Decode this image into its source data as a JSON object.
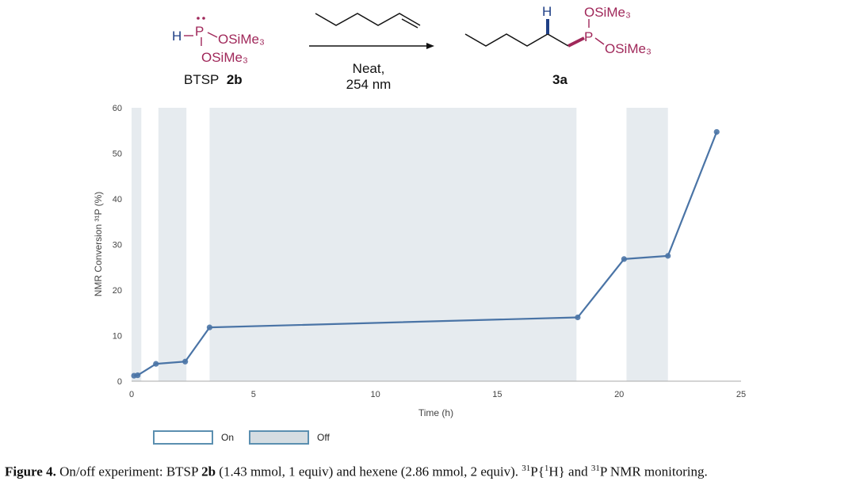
{
  "scheme": {
    "reagent": {
      "h": "H",
      "p": "P",
      "osime3_top": "OSiMe₃",
      "osime3_bottom": "OSiMe₃",
      "name_prefix": "BTSP",
      "name_bold": "2b"
    },
    "conditions": {
      "line1": "Neat,",
      "line2": "254 nm"
    },
    "product": {
      "h": "H",
      "p": "P",
      "osime3_top": "OSiMe₃",
      "osime3_right": "OSiMe₃",
      "label": "3a"
    },
    "colors": {
      "phosphorus": "#a0285a",
      "hydrogen": "#1f3f86",
      "bond": "#111111"
    }
  },
  "chart_data": {
    "type": "line",
    "xlabel": "Time (h)",
    "ylabel": "NMR Conversion ³¹P (%)",
    "xlim": [
      0,
      25
    ],
    "ylim": [
      0,
      60
    ],
    "xticks": [
      0,
      5,
      10,
      15,
      20,
      25
    ],
    "yticks": [
      0,
      10,
      20,
      30,
      40,
      50,
      60
    ],
    "grid": false,
    "series": [
      {
        "color": "#4a74a6",
        "x": [
          0.1,
          0.25,
          1.0,
          2.2,
          3.2,
          18.3,
          20.2,
          22.0,
          24.0
        ],
        "y": [
          1.2,
          1.3,
          3.8,
          4.3,
          11.8,
          14.0,
          26.8,
          27.5,
          54.7
        ]
      }
    ],
    "off_intervals": [
      [
        0,
        0.4
      ],
      [
        1.1,
        2.25
      ],
      [
        3.2,
        18.25
      ],
      [
        20.3,
        22.0
      ]
    ],
    "off_color": "#e6ebef",
    "legend": {
      "position": "bottom-left",
      "items": [
        {
          "label": "On",
          "fill": "#ffffff",
          "border": "#5b8fb0"
        },
        {
          "label": "Off",
          "fill": "#d5dde2",
          "border": "#5b8fb0"
        }
      ]
    }
  },
  "caption": {
    "label": "Figure 4.",
    "seg1": " On/off experiment: BTSP ",
    "bold1": "2b",
    "seg2": " (1.43 mmol, 1 equiv) and hexene (2.86 mmol, 2 equiv). ",
    "sup1": "31",
    "seg3": "P{",
    "sup2": "1",
    "seg4": "H} and ",
    "sup3": "31",
    "seg5": "P NMR monitoring."
  }
}
